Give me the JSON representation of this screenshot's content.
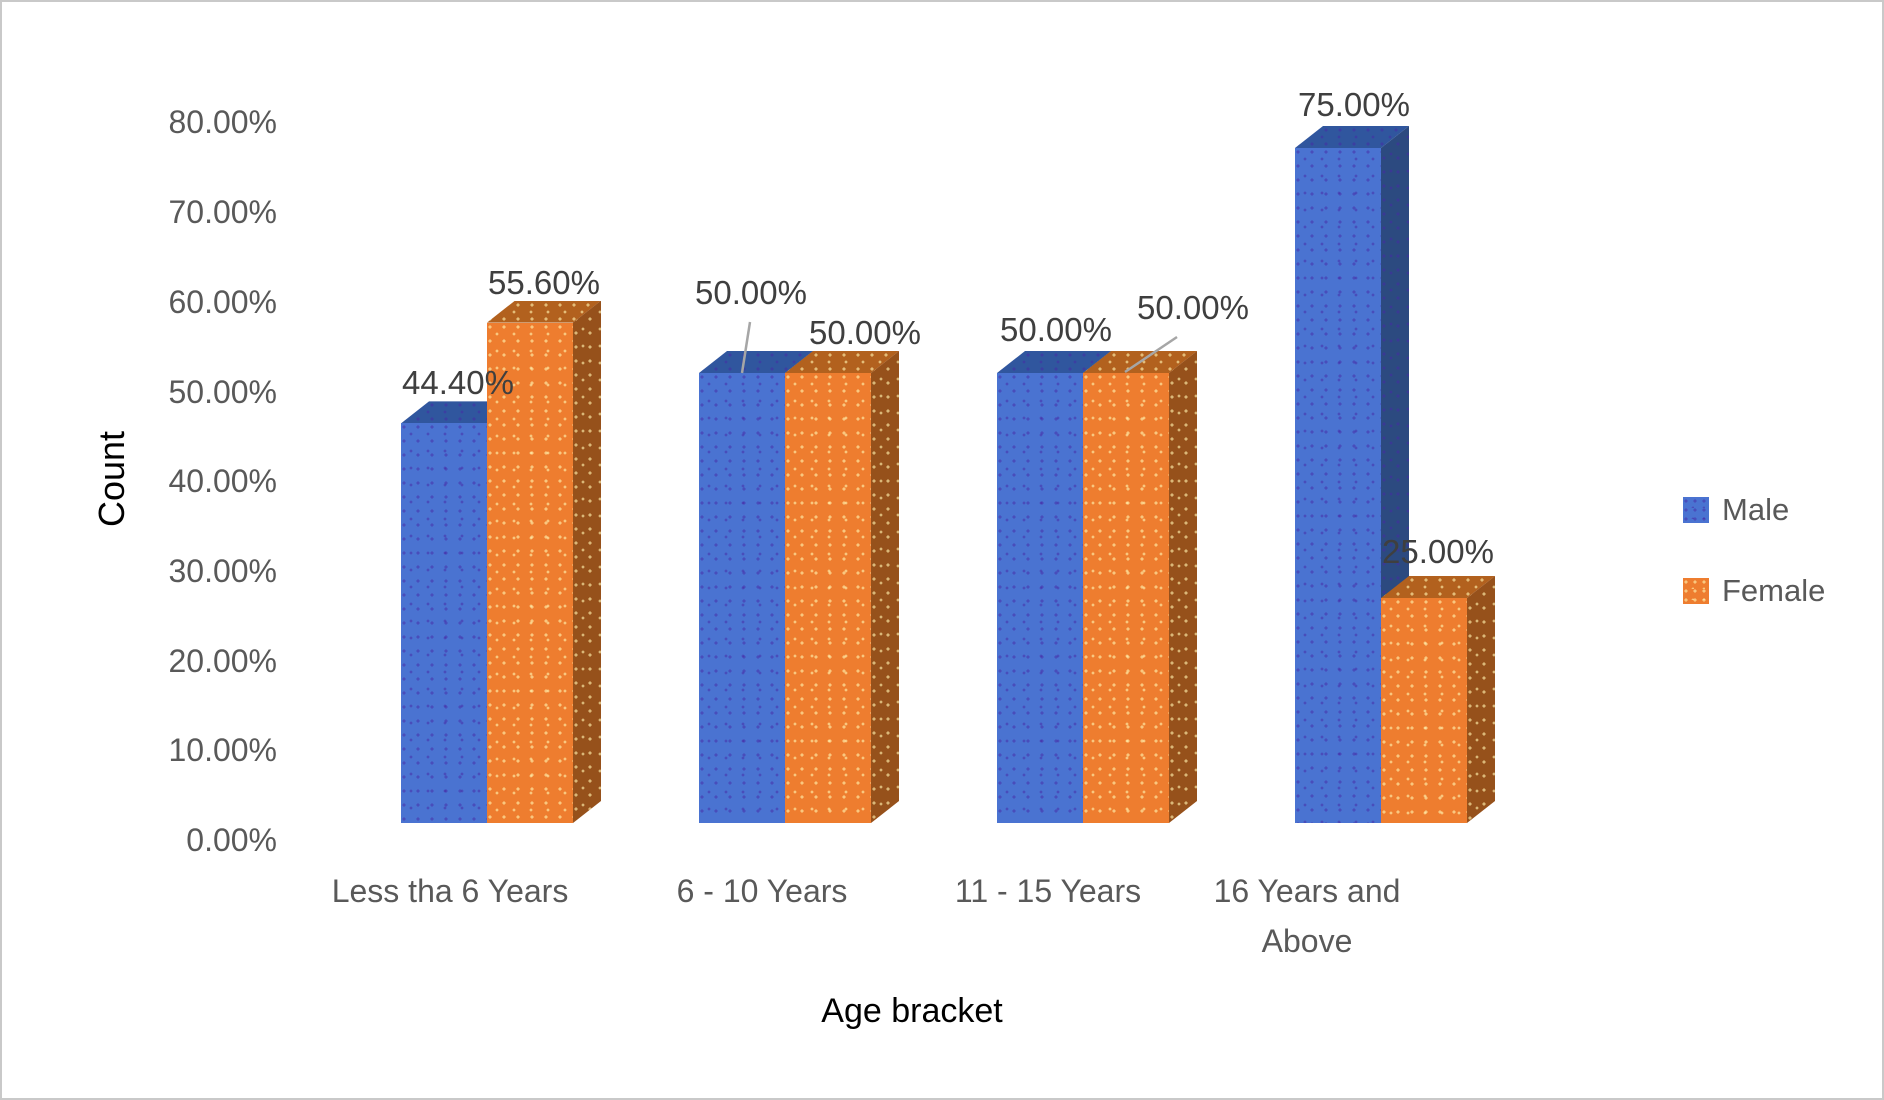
{
  "chart_data": {
    "type": "bar",
    "variant": "3d-clustered-column",
    "title": "",
    "xlabel": "Age bracket",
    "ylabel": "Count",
    "categories": [
      "Less tha 6 Years",
      "6 - 10 Years",
      "11 - 15 Years",
      "16 Years and Above"
    ],
    "series": [
      {
        "name": "Male",
        "values": [
          44.4,
          50.0,
          50.0,
          75.0
        ],
        "data_labels": [
          "44.40%",
          "50.00%",
          "50.00%",
          "75.00%"
        ],
        "color": "#4a73d1",
        "color_top": "#30569e",
        "color_side": "#2c4a80",
        "pattern_dot_color": "rgba(70,40,165,0.5)"
      },
      {
        "name": "Female",
        "values": [
          55.6,
          50.0,
          50.0,
          25.0
        ],
        "data_labels": [
          "55.60%",
          "50.00%",
          "50.00%",
          "25.00%"
        ],
        "color": "#ee7d2f",
        "color_top": "#b2611e",
        "color_side": "#96511b",
        "pattern_dot_color": "rgba(255,238,170,0.65)"
      }
    ],
    "y_ticks": [
      "0.00%",
      "10.00%",
      "20.00%",
      "30.00%",
      "40.00%",
      "50.00%",
      "60.00%",
      "70.00%",
      "80.00%"
    ],
    "ylim": [
      0,
      80
    ],
    "grid": false,
    "legend_position": "right",
    "axis_text_color": "#595959",
    "data_label_color": "#3f3f3f",
    "leader_line_color": "#a6a6a6",
    "frame_border_color": "#c9c9c9",
    "background_color": "#ffffff"
  }
}
